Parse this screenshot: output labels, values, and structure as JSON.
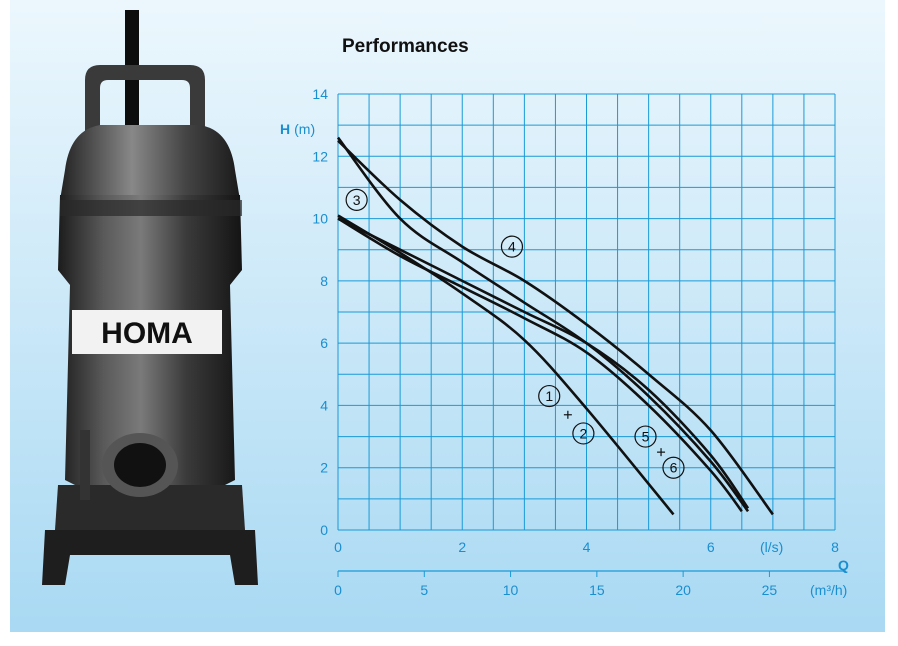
{
  "colors": {
    "background_top": "#ecf7fd",
    "background_bottom": "#a9d9f3",
    "grid": "#1a9ad6",
    "axis_text": "#1a8fd0",
    "curve": "#111111"
  },
  "pump": {
    "brand_logo_text": "HOMA"
  },
  "chart_data": {
    "type": "line",
    "title": "Performances",
    "ylabel_symbol": "H",
    "ylabel_unit": "(m)",
    "xlabel_symbol": "Q",
    "x_unit": "(l/s)",
    "x2_unit": "(m³/h)",
    "xlim": [
      0,
      8
    ],
    "ylim": [
      0,
      14
    ],
    "x2lim": [
      0,
      28.8
    ],
    "x_ticks": [
      0,
      2,
      4,
      6,
      8
    ],
    "x_tick_labels": [
      "0",
      "2",
      "4",
      "6",
      "8"
    ],
    "x2_ticks": [
      0,
      5,
      10,
      15,
      20,
      25
    ],
    "x2_tick_labels": [
      "0",
      "5",
      "10",
      "15",
      "20",
      "25"
    ],
    "y_ticks": [
      0,
      2,
      4,
      6,
      8,
      10,
      12,
      14
    ],
    "y_tick_labels": [
      "0",
      "2",
      "4",
      "6",
      "8",
      "10",
      "12",
      "14"
    ],
    "grid": true,
    "series": [
      {
        "id": "c1",
        "x": [
          0,
          1,
          2,
          3,
          4,
          5.4
        ],
        "y": [
          10.1,
          8.9,
          7.6,
          6.1,
          3.9,
          0.5
        ]
      },
      {
        "id": "c2",
        "x": [
          0,
          1,
          2,
          3,
          4,
          5,
          6,
          6.5
        ],
        "y": [
          10.0,
          8.8,
          7.8,
          6.8,
          5.7,
          4.0,
          1.9,
          0.6
        ]
      },
      {
        "id": "c3",
        "x": [
          0,
          1,
          2,
          3,
          4,
          5,
          6,
          6.6
        ],
        "y": [
          12.6,
          10.0,
          8.6,
          7.3,
          6.0,
          4.3,
          2.2,
          0.6
        ]
      },
      {
        "id": "c4",
        "x": [
          0,
          1,
          2,
          3,
          4,
          5,
          6,
          7.0
        ],
        "y": [
          12.5,
          10.6,
          9.1,
          8.0,
          6.6,
          5.0,
          3.2,
          0.5
        ]
      },
      {
        "id": "c5",
        "x": [
          0,
          1,
          2,
          3,
          4,
          5,
          6,
          6.6
        ],
        "y": [
          10.0,
          9.0,
          8.0,
          7.0,
          6.0,
          4.5,
          2.4,
          0.7
        ]
      }
    ],
    "curve_labels": [
      {
        "text": "1",
        "x": 3.4,
        "y": 4.3
      },
      {
        "text": "2",
        "x": 3.95,
        "y": 3.1
      },
      {
        "text": "3",
        "x": 0.3,
        "y": 10.6
      },
      {
        "text": "4",
        "x": 2.8,
        "y": 9.1
      },
      {
        "text": "5",
        "x": 4.95,
        "y": 3.0
      },
      {
        "text": "6",
        "x": 5.4,
        "y": 2.0
      }
    ],
    "plus_markers": [
      {
        "x": 3.7,
        "y": 3.7
      },
      {
        "x": 5.2,
        "y": 2.5
      }
    ]
  }
}
